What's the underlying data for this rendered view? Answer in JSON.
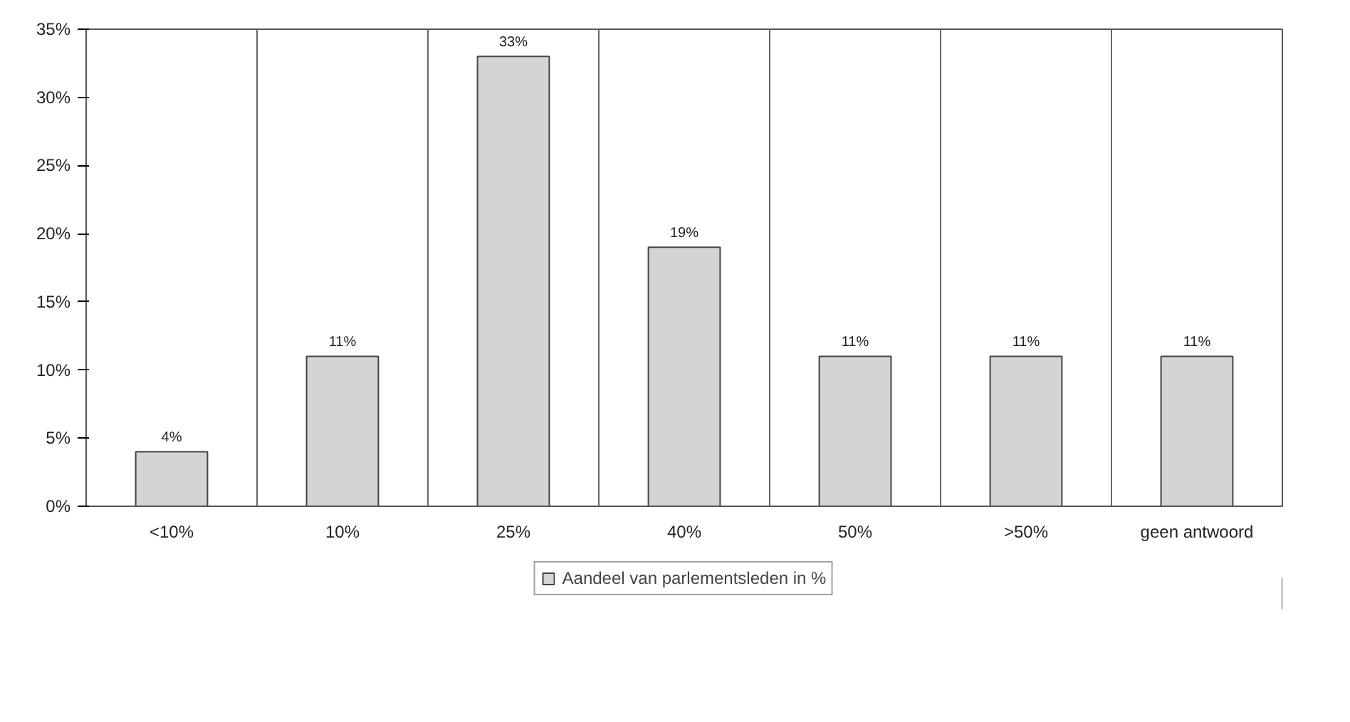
{
  "chart_data": {
    "type": "bar",
    "categories": [
      "<10%",
      "10%",
      "25%",
      "40%",
      "50%",
      ">50%",
      "geen antwoord"
    ],
    "series": [
      {
        "name": "Aandeel van parlementsleden in %",
        "color": "#d4d4d4",
        "values": [
          4,
          11,
          33,
          19,
          11,
          11,
          11
        ],
        "value_labels": [
          "4%",
          "11%",
          "33%",
          "19%",
          "11%",
          "11%",
          "11%"
        ]
      }
    ],
    "ylim": [
      0,
      35
    ],
    "yticks": [
      {
        "value": 0,
        "label": "0%"
      },
      {
        "value": 5,
        "label": "5%"
      },
      {
        "value": 10,
        "label": "10%"
      },
      {
        "value": 15,
        "label": "15%"
      },
      {
        "value": 20,
        "label": "20%"
      },
      {
        "value": 25,
        "label": "25%"
      },
      {
        "value": 30,
        "label": "30%"
      },
      {
        "value": 35,
        "label": "35%"
      }
    ],
    "grid": "x",
    "legend": "bottom"
  }
}
